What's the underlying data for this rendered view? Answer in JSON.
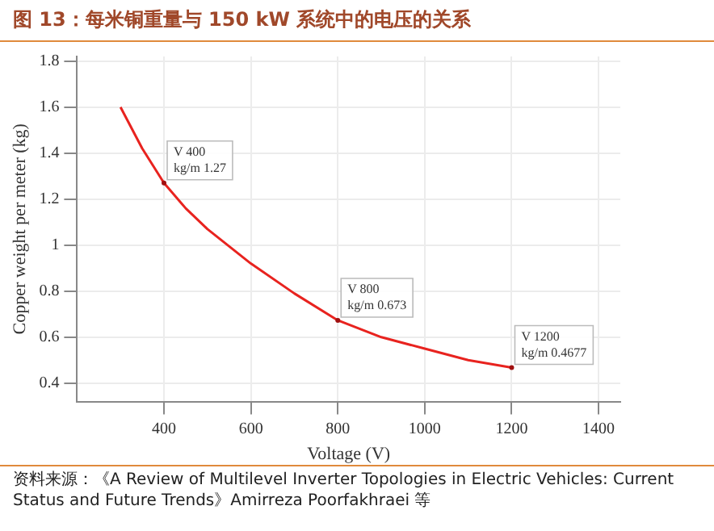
{
  "chart_data": {
    "type": "line",
    "title": "图 13：每米铜重量与 150 kW 系统中的电压的关系",
    "xlabel": "Voltage (V)",
    "ylabel": "Copper weight per meter (kg)",
    "x": [
      300,
      350,
      400,
      450,
      500,
      600,
      700,
      800,
      900,
      1000,
      1100,
      1200
    ],
    "series": [
      {
        "color": "#e8231f",
        "values": [
          1.6,
          1.42,
          1.27,
          1.16,
          1.07,
          0.92,
          0.79,
          0.673,
          0.6,
          0.55,
          0.5,
          0.4677
        ]
      }
    ],
    "xlim": [
      200,
      1450
    ],
    "xticks": [
      400,
      600,
      800,
      1000,
      1200,
      1400
    ],
    "ylim": [
      0.32,
      1.82
    ],
    "yticks": [
      0.4,
      0.6,
      0.8,
      1,
      1.2,
      1.4,
      1.6,
      1.8
    ],
    "grid": true,
    "legend": false,
    "marker": "none",
    "line_style": "solid",
    "annotations": [
      {
        "text": "V 400\nkg/m 1.27",
        "x": 400,
        "y": 1.27
      },
      {
        "text": "V 800\nkg/m 0.673",
        "x": 800,
        "y": 0.673
      },
      {
        "text": "V 1200\nkg/m 0.4677",
        "x": 1200,
        "y": 0.4677
      },
      "资料来源：《A Review of Multilevel Inverter Topologies in Electric Vehicles: Current Status and Future Trends》Amirreza Poorfakhraei 等"
    ]
  }
}
